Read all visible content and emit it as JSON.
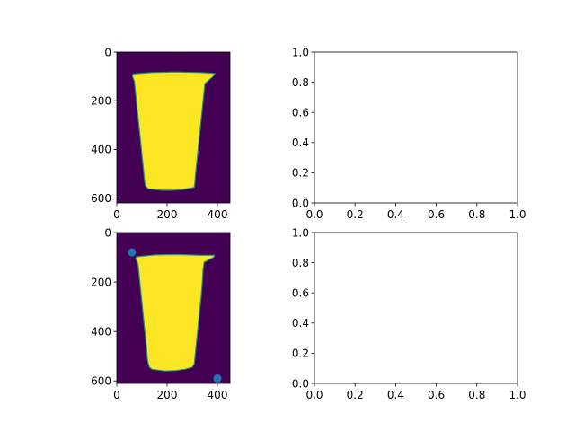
{
  "chart_data": [
    {
      "type": "image",
      "panel": "top-left",
      "image_size": [
        450,
        620
      ],
      "xlim": [
        0,
        450
      ],
      "ylim": [
        620,
        0
      ],
      "xticks": [
        0,
        200,
        400
      ],
      "yticks": [
        0,
        200,
        400,
        600
      ],
      "colormap": "viridis",
      "background_color": "#440154",
      "mask_color": "#fde725",
      "edge_color": "#21918c",
      "cup_outline": [
        [
          65,
          90
        ],
        [
          62,
          100
        ],
        [
          70,
          120
        ],
        [
          73,
          150
        ],
        [
          78,
          200
        ],
        [
          83,
          250
        ],
        [
          88,
          300
        ],
        [
          93,
          350
        ],
        [
          98,
          400
        ],
        [
          103,
          450
        ],
        [
          108,
          500
        ],
        [
          110,
          525
        ],
        [
          114,
          550
        ],
        [
          125,
          562
        ],
        [
          180,
          568
        ],
        [
          220,
          568
        ],
        [
          260,
          565
        ],
        [
          308,
          556
        ],
        [
          310,
          540
        ],
        [
          312,
          510
        ],
        [
          317,
          460
        ],
        [
          322,
          410
        ],
        [
          327,
          360
        ],
        [
          332,
          310
        ],
        [
          337,
          260
        ],
        [
          342,
          210
        ],
        [
          347,
          160
        ],
        [
          350,
          130
        ],
        [
          383,
          100
        ],
        [
          390,
          88
        ],
        [
          330,
          84
        ],
        [
          230,
          82
        ],
        [
          140,
          84
        ]
      ]
    },
    {
      "type": "line",
      "panel": "top-right",
      "xlim": [
        0,
        1
      ],
      "ylim": [
        0,
        1
      ],
      "xticks": [
        "0.0",
        "0.2",
        "0.4",
        "0.6",
        "0.8",
        "1.0"
      ],
      "yticks": [
        "0.0",
        "0.2",
        "0.4",
        "0.6",
        "0.8",
        "1.0"
      ],
      "series": []
    },
    {
      "type": "scatter",
      "panel": "bottom-left",
      "image_size": [
        450,
        610
      ],
      "xlim": [
        0,
        450
      ],
      "ylim": [
        610,
        0
      ],
      "xticks": [
        0,
        200,
        400
      ],
      "yticks": [
        0,
        200,
        400,
        600
      ],
      "colormap": "viridis",
      "background_color": "#440154",
      "mask_color": "#fde725",
      "edge_color": "#21918c",
      "point_color": "#1f77b4",
      "points": [
        {
          "x": 60,
          "y": 80
        },
        {
          "x": 400,
          "y": 590
        }
      ],
      "cup_outline": [
        [
          78,
          98
        ],
        [
          75,
          105
        ],
        [
          84,
          125
        ],
        [
          87,
          155
        ],
        [
          92,
          205
        ],
        [
          97,
          255
        ],
        [
          102,
          305
        ],
        [
          107,
          355
        ],
        [
          112,
          405
        ],
        [
          117,
          455
        ],
        [
          121,
          505
        ],
        [
          124,
          525
        ],
        [
          130,
          545
        ],
        [
          140,
          553
        ],
        [
          190,
          560
        ],
        [
          235,
          558
        ],
        [
          270,
          553
        ],
        [
          300,
          545
        ],
        [
          308,
          530
        ],
        [
          311,
          500
        ],
        [
          316,
          450
        ],
        [
          321,
          400
        ],
        [
          326,
          350
        ],
        [
          331,
          300
        ],
        [
          336,
          250
        ],
        [
          340,
          200
        ],
        [
          343,
          150
        ],
        [
          347,
          120
        ],
        [
          385,
          100
        ],
        [
          388,
          92
        ],
        [
          330,
          92
        ],
        [
          250,
          89
        ],
        [
          155,
          90
        ]
      ]
    },
    {
      "type": "line",
      "panel": "bottom-right",
      "xlim": [
        0,
        1
      ],
      "ylim": [
        0,
        1
      ],
      "xticks": [
        "0.0",
        "0.2",
        "0.4",
        "0.6",
        "0.8",
        "1.0"
      ],
      "yticks": [
        "0.0",
        "0.2",
        "0.4",
        "0.6",
        "0.8",
        "1.0"
      ],
      "series": []
    }
  ]
}
